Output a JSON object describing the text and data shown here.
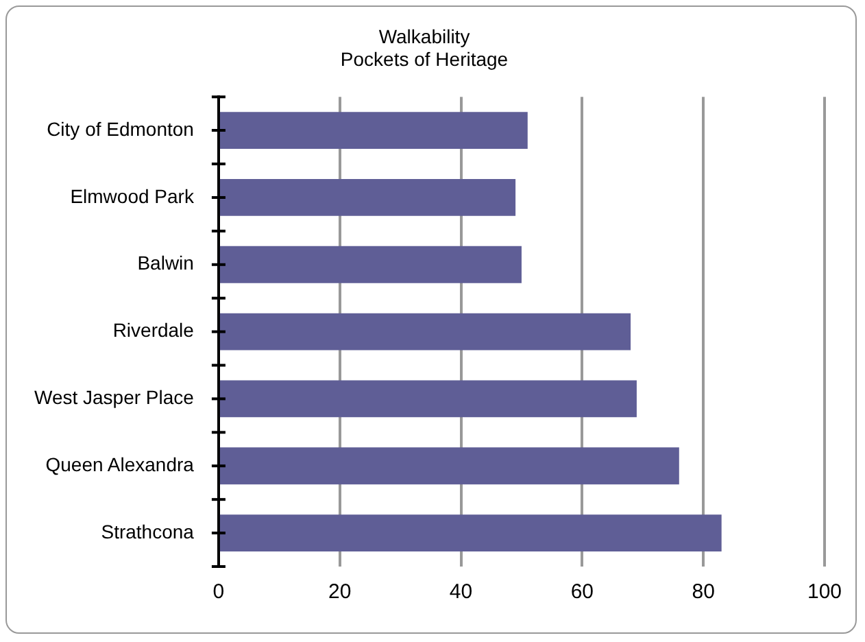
{
  "chart_data": {
    "type": "bar",
    "orientation": "horizontal",
    "title": "Walkability\nPockets of Heritage",
    "categories": [
      "City of Edmonton",
      "Elmwood Park",
      "Balwin",
      "Riverdale",
      "West Jasper Place",
      "Queen Alexandra",
      "Strathcona"
    ],
    "values": [
      51,
      49,
      50,
      68,
      69,
      76,
      83
    ],
    "color": "#5f5e96",
    "xlim": [
      0,
      100
    ],
    "xticks": [
      0,
      20,
      40,
      60,
      80,
      100
    ],
    "grid": "x",
    "legend": false
  }
}
